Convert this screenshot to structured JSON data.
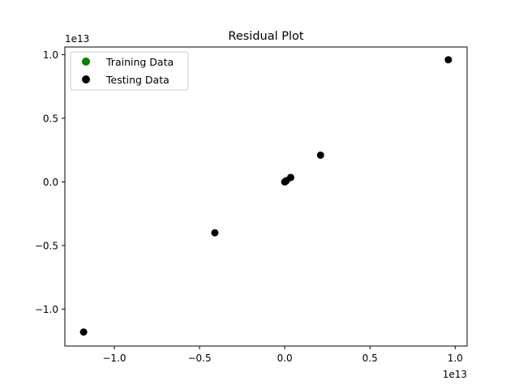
{
  "chart_data": {
    "type": "scatter",
    "title": "Residual Plot",
    "xlabel": "",
    "ylabel": "",
    "x_offset_label": "1e13",
    "y_offset_label": "1e13",
    "xlim": [
      -1.29,
      1.07
    ],
    "ylim": [
      -1.29,
      1.06
    ],
    "xticks": [
      -1.0,
      -0.5,
      0.0,
      0.5,
      1.0
    ],
    "xtick_labels": [
      "−1.0",
      "−0.5",
      "0.0",
      "0.5",
      "1.0"
    ],
    "yticks": [
      -1.0,
      -0.5,
      0.0,
      0.5,
      1.0
    ],
    "ytick_labels": [
      "−1.0",
      "−0.5",
      "0.0",
      "0.5",
      "1.0"
    ],
    "grid": false,
    "legend_position": "top-left",
    "series": [
      {
        "name": "Training Data",
        "color": "#008000",
        "points": []
      },
      {
        "name": "Testing Data",
        "color": "#000000",
        "points": [
          {
            "x": -1.18,
            "y": -1.18
          },
          {
            "x": -0.41,
            "y": -0.4
          },
          {
            "x": 0.0,
            "y": 0.0
          },
          {
            "x": 0.005,
            "y": 0.005
          },
          {
            "x": 0.01,
            "y": 0.01
          },
          {
            "x": 0.035,
            "y": 0.035
          },
          {
            "x": 0.21,
            "y": 0.21
          },
          {
            "x": 0.96,
            "y": 0.96
          }
        ]
      }
    ]
  }
}
